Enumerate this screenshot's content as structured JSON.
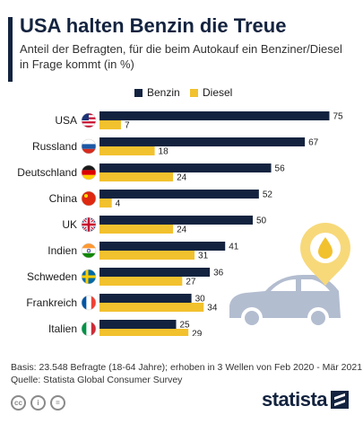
{
  "header": {
    "title": "USA halten Benzin die Treue",
    "subtitle": "Anteil der Befragten, für die beim Autokauf ein Benziner/Diesel in Frage kommt (in %)"
  },
  "footer": {
    "basis": "Basis: 23.548 Befragte (18-64 Jahre); erhoben in 3 Wellen von Feb 2020 - Mär 2021",
    "source": "Quelle: Statista Global Consumer Survey",
    "brand": "statista",
    "license_icons": [
      "cc-icon",
      "by-icon",
      "nd-icon"
    ]
  },
  "colors": {
    "benzin": "#13233f",
    "diesel": "#f2c12e",
    "accent": "#13233f",
    "illustration": "#b3bdd0",
    "pin": "#f7d97a"
  },
  "chart_data": {
    "type": "bar",
    "orientation": "horizontal",
    "categories": [
      "USA",
      "Russland",
      "Deutschland",
      "China",
      "UK",
      "Indien",
      "Schweden",
      "Frankreich",
      "Italien"
    ],
    "flag_icons": [
      "flag-us-icon",
      "flag-ru-icon",
      "flag-de-icon",
      "flag-cn-icon",
      "flag-uk-icon",
      "flag-in-icon",
      "flag-se-icon",
      "flag-fr-icon",
      "flag-it-icon"
    ],
    "series": [
      {
        "name": "Benzin",
        "color": "#13233f",
        "values": [
          75,
          67,
          56,
          52,
          50,
          41,
          36,
          30,
          25
        ]
      },
      {
        "name": "Diesel",
        "color": "#f2c12e",
        "values": [
          7,
          18,
          24,
          4,
          24,
          31,
          27,
          34,
          29
        ]
      }
    ],
    "xlim": [
      0,
      80
    ],
    "legend_position": "top-right",
    "grid": false,
    "data_labels": true
  }
}
